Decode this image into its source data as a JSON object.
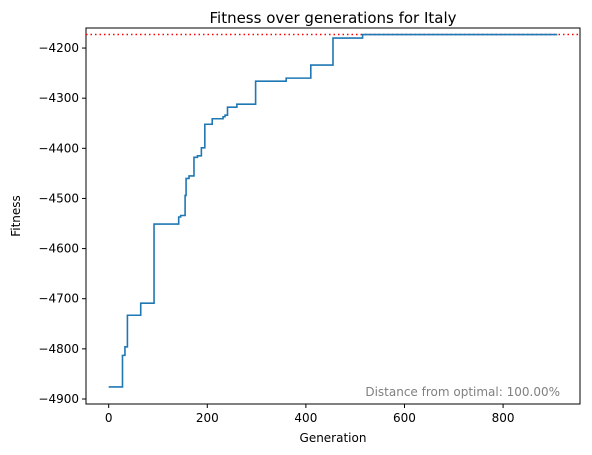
{
  "chart_data": {
    "type": "line",
    "title": "Fitness over generations for Italy",
    "xlabel": "Generation",
    "ylabel": "Fitness",
    "xlim": [
      -46,
      956
    ],
    "ylim": [
      -4910,
      -4160
    ],
    "xticks": [
      0,
      200,
      400,
      600,
      800
    ],
    "yticks": [
      -4200,
      -4300,
      -4400,
      -4500,
      -4600,
      -4700,
      -4800,
      -4900
    ],
    "grid": false,
    "series": [
      {
        "color": "#1f77b4",
        "x": [
          0,
          28,
          28,
          33,
          33,
          38,
          38,
          43,
          43,
          65,
          65,
          92,
          92,
          142,
          142,
          146,
          146,
          155,
          155,
          157,
          157,
          163,
          163,
          173,
          173,
          180,
          180,
          188,
          188,
          195,
          195,
          210,
          210,
          232,
          232,
          236,
          236,
          241,
          241,
          260,
          260,
          298,
          298,
          360,
          360,
          410,
          410,
          455,
          455,
          515,
          515,
          633,
          633,
          910
        ],
        "y": [
          -4876,
          -4876,
          -4813,
          -4813,
          -4796,
          -4796,
          -4733,
          -4733,
          -4733,
          -4733,
          -4709,
          -4709,
          -4551,
          -4551,
          -4537,
          -4537,
          -4534,
          -4534,
          -4494,
          -4494,
          -4460,
          -4460,
          -4455,
          -4455,
          -4418,
          -4418,
          -4415,
          -4415,
          -4399,
          -4399,
          -4352,
          -4352,
          -4341,
          -4341,
          -4337,
          -4337,
          -4334,
          -4334,
          -4318,
          -4318,
          -4312,
          -4312,
          -4266,
          -4266,
          -4260,
          -4260,
          -4234,
          -4234,
          -4180,
          -4180,
          -4173,
          -4173,
          -4173,
          -4173
        ]
      }
    ],
    "reference_line": {
      "y": -4173,
      "color": "#ff0000",
      "style": "dotted"
    },
    "annotation": {
      "text": "Distance from optimal: 100.00%",
      "color": "#808080",
      "position": "bottom-right"
    }
  }
}
